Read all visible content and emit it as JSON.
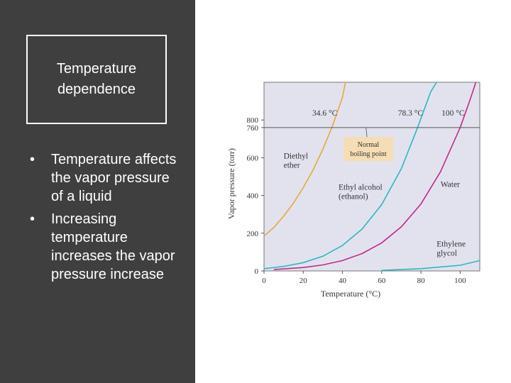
{
  "slide": {
    "title": "Temperature dependence",
    "bullets": [
      "Temperature affects the vapor pressure of a liquid",
      "Increasing temperature increases the vapor pressure increase"
    ],
    "bullet_glyph": "•"
  },
  "colors": {
    "left_panel": "#3f3f3f",
    "plot_background": "#e2e2ee",
    "diethyl_ether": "#e8a83a",
    "ethyl_alcohol": "#2bb8c4",
    "water": "#c02a8a",
    "ethylene_glycol": "#2bb8c4",
    "reference_line": "#555555",
    "label_box": "#f5ddb5"
  },
  "chart_data": {
    "type": "line",
    "title": "",
    "xlabel": "Temperature (°C)",
    "ylabel": "Vapor pressure (torr)",
    "xlim": [
      0,
      110
    ],
    "ylim": [
      0,
      1000
    ],
    "x_ticks": [
      0,
      20,
      40,
      60,
      80,
      100
    ],
    "y_ticks": [
      0,
      200,
      400,
      600,
      800
    ],
    "extra_y_ticks": [
      760
    ],
    "grid": false,
    "reference_line": {
      "y": 760
    },
    "annotations": {
      "normal_boiling_point": "Normal boiling point",
      "boiling_points": [
        "34.6 °C",
        "78.3 °C",
        "100 °C"
      ]
    },
    "series": [
      {
        "name": "Diethyl ether",
        "x": [
          0,
          5,
          10,
          15,
          20,
          25,
          30,
          34.6,
          40,
          41.5
        ],
        "y": [
          185,
          230,
          290,
          360,
          442,
          535,
          645,
          760,
          920,
          1000
        ]
      },
      {
        "name": "Ethyl alcohol (ethanol)",
        "x": [
          0,
          10,
          20,
          30,
          40,
          50,
          60,
          70,
          78.3,
          85,
          88
        ],
        "y": [
          12,
          24,
          44,
          78,
          135,
          222,
          352,
          542,
          760,
          950,
          1000
        ]
      },
      {
        "name": "Water",
        "x": [
          5,
          20,
          30,
          40,
          50,
          60,
          70,
          80,
          90,
          100,
          105,
          108
        ],
        "y": [
          7,
          18,
          32,
          55,
          92,
          149,
          234,
          355,
          526,
          760,
          906,
          1000
        ]
      },
      {
        "name": "Ethylene glycol",
        "x": [
          60,
          80,
          100,
          110
        ],
        "y": [
          3,
          12,
          30,
          55
        ]
      }
    ]
  }
}
